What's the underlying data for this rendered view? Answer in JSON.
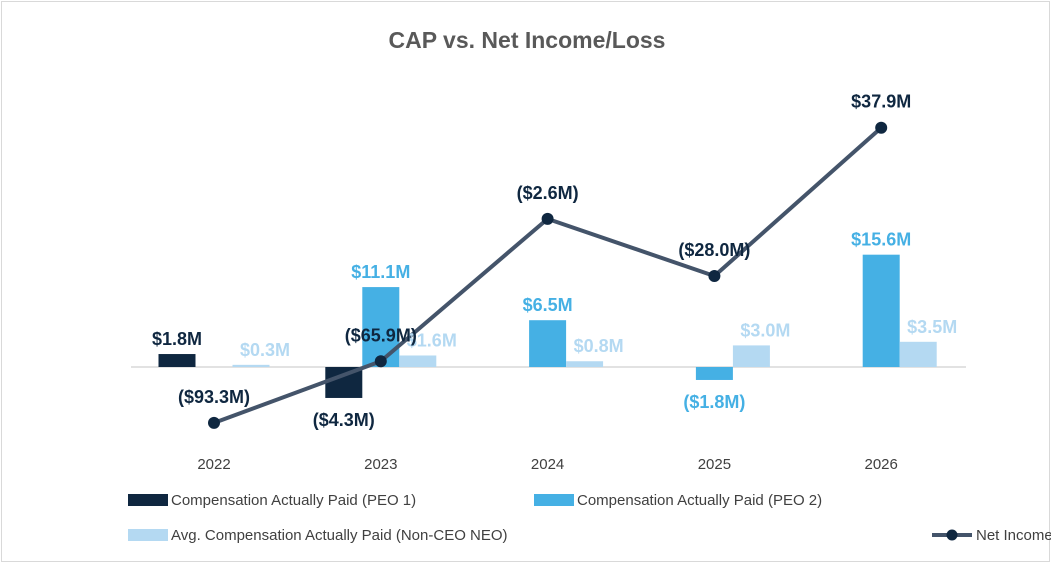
{
  "chart_data": {
    "type": "bar",
    "title": "CAP vs. Net Income/Loss",
    "categories": [
      "2022",
      "2023",
      "2024",
      "2025",
      "2026"
    ],
    "series": [
      {
        "name": "Compensation Actually Paid (PEO 1)",
        "kind": "bar",
        "axis": "primary",
        "color": "#0f2740",
        "label_color": "#0f2740",
        "values": [
          1.8,
          -4.3,
          null,
          null,
          null
        ],
        "labels": [
          "$1.8M",
          "($4.3M)",
          null,
          null,
          null
        ]
      },
      {
        "name": "Compensation Actually Paid (PEO 2)",
        "kind": "bar",
        "axis": "primary",
        "color": "#45b0e4",
        "label_color": "#45b0e4",
        "values": [
          null,
          11.1,
          6.5,
          -1.8,
          15.6
        ],
        "labels": [
          null,
          "$11.1M",
          "$6.5M",
          "($1.8M)",
          "$15.6M"
        ]
      },
      {
        "name": "Avg. Compensation Actually Paid (Non-CEO NEO)",
        "kind": "bar",
        "axis": "primary",
        "color": "#b4d9f2",
        "label_color": "#b4d9f2",
        "values": [
          0.3,
          1.6,
          0.8,
          3.0,
          3.5
        ],
        "labels": [
          "$0.3M",
          "$1.6M",
          "$0.8M",
          "$3.0M",
          "$3.5M"
        ]
      },
      {
        "name": "Net Income / Loss (Millions)",
        "kind": "line",
        "axis": "secondary",
        "color": "#44546a",
        "marker_color": "#0f2740",
        "label_color": "#0f2740",
        "values": [
          -93.3,
          -65.9,
          -2.6,
          -28.0,
          37.9
        ],
        "labels": [
          "($93.3M)",
          "($65.9M)",
          "($2.6M)",
          "($28.0M)",
          "$37.9M"
        ]
      }
    ],
    "unit": "$ millions",
    "grid": false,
    "y_axis_visible": false,
    "legend_position": "bottom"
  }
}
